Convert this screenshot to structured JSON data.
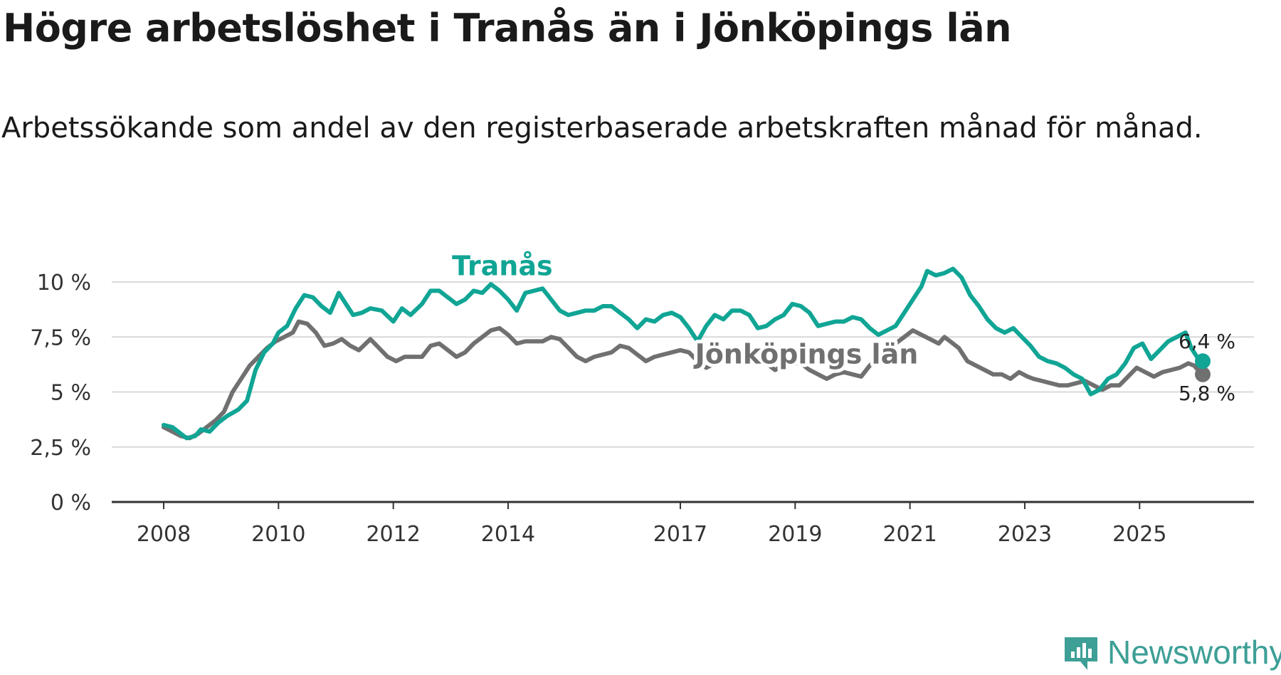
{
  "title": "Högre arbetslöshet i Tranås än i Jönköpings län",
  "subtitle": "Arbetssökande som andel av den registerbaserade arbetskraften månad för månad.",
  "brand": {
    "name": "Newsworthy",
    "icon": "newsworthy-logo-icon",
    "color": "#3d9f96"
  },
  "chart_data": {
    "type": "line",
    "title": "Högre arbetslöshet i Tranås än i Jönköpings län",
    "xlabel": "",
    "ylabel": "",
    "xlim": [
      2008.0,
      2026.1
    ],
    "ylim": [
      0,
      10
    ],
    "grid": true,
    "y_ticks": [
      0,
      2.5,
      5,
      7.5,
      10
    ],
    "y_tick_labels": [
      "0 %",
      "2,5 %",
      "5 %",
      "7,5 %",
      "10 %"
    ],
    "x_ticks": [
      2008,
      2010,
      2012,
      2014,
      2017,
      2019,
      2021,
      2023,
      2025
    ],
    "x_tick_labels": [
      "2008",
      "2010",
      "2012",
      "2014",
      "2017",
      "2019",
      "2021",
      "2023",
      "2025"
    ],
    "series": [
      {
        "name": "Tranås",
        "color": "#10a595",
        "end_label": "6,4 %",
        "points": [
          [
            2008.0,
            3.5
          ],
          [
            2008.15,
            3.4
          ],
          [
            2008.3,
            3.1
          ],
          [
            2008.4,
            2.9
          ],
          [
            2008.55,
            3.0
          ],
          [
            2008.65,
            3.3
          ],
          [
            2008.8,
            3.2
          ],
          [
            2008.95,
            3.6
          ],
          [
            2009.1,
            3.9
          ],
          [
            2009.3,
            4.2
          ],
          [
            2009.45,
            4.6
          ],
          [
            2009.6,
            6.0
          ],
          [
            2009.75,
            6.8
          ],
          [
            2009.9,
            7.2
          ],
          [
            2010.0,
            7.7
          ],
          [
            2010.15,
            8.0
          ],
          [
            2010.3,
            8.8
          ],
          [
            2010.45,
            9.4
          ],
          [
            2010.6,
            9.3
          ],
          [
            2010.75,
            8.9
          ],
          [
            2010.9,
            8.6
          ],
          [
            2011.05,
            9.5
          ],
          [
            2011.2,
            8.9
          ],
          [
            2011.3,
            8.5
          ],
          [
            2011.45,
            8.6
          ],
          [
            2011.6,
            8.8
          ],
          [
            2011.8,
            8.7
          ],
          [
            2012.0,
            8.2
          ],
          [
            2012.15,
            8.8
          ],
          [
            2012.3,
            8.5
          ],
          [
            2012.5,
            9.0
          ],
          [
            2012.65,
            9.6
          ],
          [
            2012.8,
            9.6
          ],
          [
            2012.95,
            9.3
          ],
          [
            2013.1,
            9.0
          ],
          [
            2013.25,
            9.2
          ],
          [
            2013.4,
            9.6
          ],
          [
            2013.55,
            9.5
          ],
          [
            2013.7,
            9.9
          ],
          [
            2013.85,
            9.6
          ],
          [
            2014.0,
            9.2
          ],
          [
            2014.15,
            8.7
          ],
          [
            2014.3,
            9.5
          ],
          [
            2014.45,
            9.6
          ],
          [
            2014.6,
            9.7
          ],
          [
            2014.75,
            9.2
          ],
          [
            2014.9,
            8.7
          ],
          [
            2015.05,
            8.5
          ],
          [
            2015.2,
            8.6
          ],
          [
            2015.35,
            8.7
          ],
          [
            2015.5,
            8.7
          ],
          [
            2015.65,
            8.9
          ],
          [
            2015.8,
            8.9
          ],
          [
            2015.95,
            8.6
          ],
          [
            2016.1,
            8.3
          ],
          [
            2016.25,
            7.9
          ],
          [
            2016.4,
            8.3
          ],
          [
            2016.55,
            8.2
          ],
          [
            2016.7,
            8.5
          ],
          [
            2016.85,
            8.6
          ],
          [
            2017.0,
            8.4
          ],
          [
            2017.15,
            7.9
          ],
          [
            2017.3,
            7.3
          ],
          [
            2017.45,
            8.0
          ],
          [
            2017.6,
            8.5
          ],
          [
            2017.75,
            8.3
          ],
          [
            2017.9,
            8.7
          ],
          [
            2018.05,
            8.7
          ],
          [
            2018.2,
            8.5
          ],
          [
            2018.35,
            7.9
          ],
          [
            2018.5,
            8.0
          ],
          [
            2018.65,
            8.3
          ],
          [
            2018.8,
            8.5
          ],
          [
            2018.95,
            9.0
          ],
          [
            2019.1,
            8.9
          ],
          [
            2019.25,
            8.6
          ],
          [
            2019.4,
            8.0
          ],
          [
            2019.55,
            8.1
          ],
          [
            2019.7,
            8.2
          ],
          [
            2019.85,
            8.2
          ],
          [
            2020.0,
            8.4
          ],
          [
            2020.15,
            8.3
          ],
          [
            2020.3,
            7.9
          ],
          [
            2020.45,
            7.6
          ],
          [
            2020.6,
            7.8
          ],
          [
            2020.75,
            8.0
          ],
          [
            2020.9,
            8.6
          ],
          [
            2021.05,
            9.2
          ],
          [
            2021.2,
            9.8
          ],
          [
            2021.3,
            10.5
          ],
          [
            2021.45,
            10.3
          ],
          [
            2021.6,
            10.4
          ],
          [
            2021.75,
            10.6
          ],
          [
            2021.9,
            10.2
          ],
          [
            2022.05,
            9.4
          ],
          [
            2022.2,
            8.9
          ],
          [
            2022.35,
            8.3
          ],
          [
            2022.5,
            7.9
          ],
          [
            2022.65,
            7.7
          ],
          [
            2022.8,
            7.9
          ],
          [
            2022.95,
            7.5
          ],
          [
            2023.1,
            7.1
          ],
          [
            2023.25,
            6.6
          ],
          [
            2023.4,
            6.4
          ],
          [
            2023.55,
            6.3
          ],
          [
            2023.7,
            6.1
          ],
          [
            2023.85,
            5.8
          ],
          [
            2024.0,
            5.6
          ],
          [
            2024.15,
            4.9
          ],
          [
            2024.3,
            5.1
          ],
          [
            2024.45,
            5.6
          ],
          [
            2024.6,
            5.8
          ],
          [
            2024.75,
            6.3
          ],
          [
            2024.9,
            7.0
          ],
          [
            2025.05,
            7.2
          ],
          [
            2025.2,
            6.5
          ],
          [
            2025.35,
            6.9
          ],
          [
            2025.5,
            7.3
          ],
          [
            2025.65,
            7.5
          ],
          [
            2025.8,
            7.7
          ],
          [
            2025.9,
            7.0
          ],
          [
            2026.0,
            6.6
          ],
          [
            2026.1,
            6.4
          ]
        ]
      },
      {
        "name": "Jönköpings län",
        "color": "#707070",
        "end_label": "5,8 %",
        "points": [
          [
            2008.0,
            3.4
          ],
          [
            2008.15,
            3.2
          ],
          [
            2008.3,
            3.0
          ],
          [
            2008.45,
            2.9
          ],
          [
            2008.6,
            3.1
          ],
          [
            2008.75,
            3.4
          ],
          [
            2008.9,
            3.7
          ],
          [
            2009.05,
            4.1
          ],
          [
            2009.2,
            5.0
          ],
          [
            2009.35,
            5.6
          ],
          [
            2009.5,
            6.2
          ],
          [
            2009.65,
            6.6
          ],
          [
            2009.8,
            7.0
          ],
          [
            2009.95,
            7.3
          ],
          [
            2010.1,
            7.5
          ],
          [
            2010.25,
            7.7
          ],
          [
            2010.35,
            8.2
          ],
          [
            2010.5,
            8.1
          ],
          [
            2010.65,
            7.7
          ],
          [
            2010.8,
            7.1
          ],
          [
            2010.95,
            7.2
          ],
          [
            2011.1,
            7.4
          ],
          [
            2011.25,
            7.1
          ],
          [
            2011.4,
            6.9
          ],
          [
            2011.6,
            7.4
          ],
          [
            2011.75,
            7.0
          ],
          [
            2011.9,
            6.6
          ],
          [
            2012.05,
            6.4
          ],
          [
            2012.2,
            6.6
          ],
          [
            2012.35,
            6.6
          ],
          [
            2012.5,
            6.6
          ],
          [
            2012.65,
            7.1
          ],
          [
            2012.8,
            7.2
          ],
          [
            2012.95,
            6.9
          ],
          [
            2013.1,
            6.6
          ],
          [
            2013.25,
            6.8
          ],
          [
            2013.4,
            7.2
          ],
          [
            2013.55,
            7.5
          ],
          [
            2013.7,
            7.8
          ],
          [
            2013.85,
            7.9
          ],
          [
            2014.0,
            7.6
          ],
          [
            2014.15,
            7.2
          ],
          [
            2014.3,
            7.3
          ],
          [
            2014.45,
            7.3
          ],
          [
            2014.6,
            7.3
          ],
          [
            2014.75,
            7.5
          ],
          [
            2014.9,
            7.4
          ],
          [
            2015.05,
            7.0
          ],
          [
            2015.2,
            6.6
          ],
          [
            2015.35,
            6.4
          ],
          [
            2015.5,
            6.6
          ],
          [
            2015.65,
            6.7
          ],
          [
            2015.8,
            6.8
          ],
          [
            2015.95,
            7.1
          ],
          [
            2016.1,
            7.0
          ],
          [
            2016.25,
            6.7
          ],
          [
            2016.4,
            6.4
          ],
          [
            2016.55,
            6.6
          ],
          [
            2016.7,
            6.7
          ],
          [
            2016.85,
            6.8
          ],
          [
            2017.0,
            6.9
          ],
          [
            2017.15,
            6.8
          ],
          [
            2017.3,
            6.4
          ],
          [
            2017.45,
            6.1
          ],
          [
            2017.6,
            6.3
          ],
          [
            2017.75,
            6.5
          ],
          [
            2017.9,
            6.6
          ],
          [
            2018.05,
            6.7
          ],
          [
            2018.2,
            6.8
          ],
          [
            2018.35,
            6.7
          ],
          [
            2018.5,
            6.3
          ],
          [
            2018.65,
            6.0
          ],
          [
            2018.8,
            6.2
          ],
          [
            2018.95,
            6.3
          ],
          [
            2019.1,
            6.3
          ],
          [
            2019.25,
            6.0
          ],
          [
            2019.4,
            5.8
          ],
          [
            2019.55,
            5.6
          ],
          [
            2019.7,
            5.8
          ],
          [
            2019.85,
            5.9
          ],
          [
            2020.0,
            5.8
          ],
          [
            2020.15,
            5.7
          ],
          [
            2020.3,
            6.2
          ],
          [
            2020.45,
            6.6
          ],
          [
            2020.6,
            6.7
          ],
          [
            2020.75,
            7.2
          ],
          [
            2020.9,
            7.5
          ],
          [
            2021.05,
            7.8
          ],
          [
            2021.2,
            7.6
          ],
          [
            2021.35,
            7.4
          ],
          [
            2021.5,
            7.2
          ],
          [
            2021.6,
            7.5
          ],
          [
            2021.7,
            7.3
          ],
          [
            2021.85,
            7.0
          ],
          [
            2022.0,
            6.4
          ],
          [
            2022.15,
            6.2
          ],
          [
            2022.3,
            6.0
          ],
          [
            2022.45,
            5.8
          ],
          [
            2022.6,
            5.8
          ],
          [
            2022.75,
            5.6
          ],
          [
            2022.9,
            5.9
          ],
          [
            2023.05,
            5.7
          ],
          [
            2023.15,
            5.6
          ],
          [
            2023.3,
            5.5
          ],
          [
            2023.45,
            5.4
          ],
          [
            2023.6,
            5.3
          ],
          [
            2023.75,
            5.3
          ],
          [
            2023.9,
            5.4
          ],
          [
            2024.05,
            5.5
          ],
          [
            2024.2,
            5.3
          ],
          [
            2024.35,
            5.1
          ],
          [
            2024.5,
            5.3
          ],
          [
            2024.65,
            5.3
          ],
          [
            2024.8,
            5.7
          ],
          [
            2024.95,
            6.1
          ],
          [
            2025.1,
            5.9
          ],
          [
            2025.25,
            5.7
          ],
          [
            2025.4,
            5.9
          ],
          [
            2025.55,
            6.0
          ],
          [
            2025.7,
            6.1
          ],
          [
            2025.85,
            6.3
          ],
          [
            2025.95,
            6.2
          ],
          [
            2026.05,
            5.9
          ],
          [
            2026.1,
            5.8
          ]
        ]
      }
    ],
    "annotations": [
      {
        "text": "Tranås",
        "series": "Tranås",
        "x": 2013.9,
        "y": 10.3
      },
      {
        "text": "Jönköpings län",
        "series": "Jönköpings län",
        "x": 2019.2,
        "y": 6.3
      }
    ]
  }
}
